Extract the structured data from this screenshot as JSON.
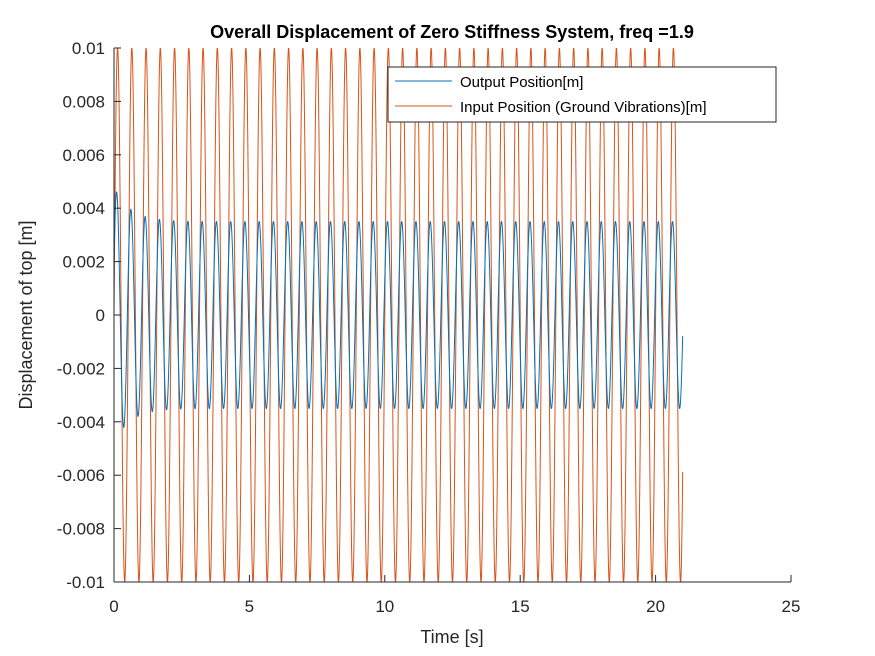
{
  "chart_data": {
    "type": "line",
    "title": "Overall Displacement of Zero Stiffness System, freq =1.9",
    "xlabel": "Time [s]",
    "ylabel": "Displacement of top [m]",
    "xlim": [
      0,
      25
    ],
    "ylim": [
      -0.01,
      0.01
    ],
    "xticks": [
      0,
      5,
      10,
      15,
      20,
      25
    ],
    "xtick_labels": [
      "0",
      "5",
      "10",
      "15",
      "20",
      "25"
    ],
    "yticks": [
      -0.01,
      -0.008,
      -0.006,
      -0.004,
      -0.002,
      0,
      0.002,
      0.004,
      0.006,
      0.008,
      0.01
    ],
    "ytick_labels": [
      "-0.01",
      "-0.008",
      "-0.006",
      "-0.004",
      "-0.002",
      "0",
      "0.002",
      "0.004",
      "0.006",
      "0.008",
      "0.01"
    ],
    "grid": false,
    "legend_position": "top-right",
    "series": [
      {
        "name": "Output Position[m]",
        "color": "#0072BD",
        "description_values": {
          "t_end": 21,
          "frequency_hz": 1.9,
          "steady_amplitude": 0.0035,
          "initial_peak": 0.0048
        }
      },
      {
        "name": "Input Position (Ground Vibrations)[m]",
        "color": "#D95319",
        "description_values": {
          "t_end": 21,
          "frequency_hz": 1.9,
          "amplitude": 0.01
        }
      }
    ]
  }
}
